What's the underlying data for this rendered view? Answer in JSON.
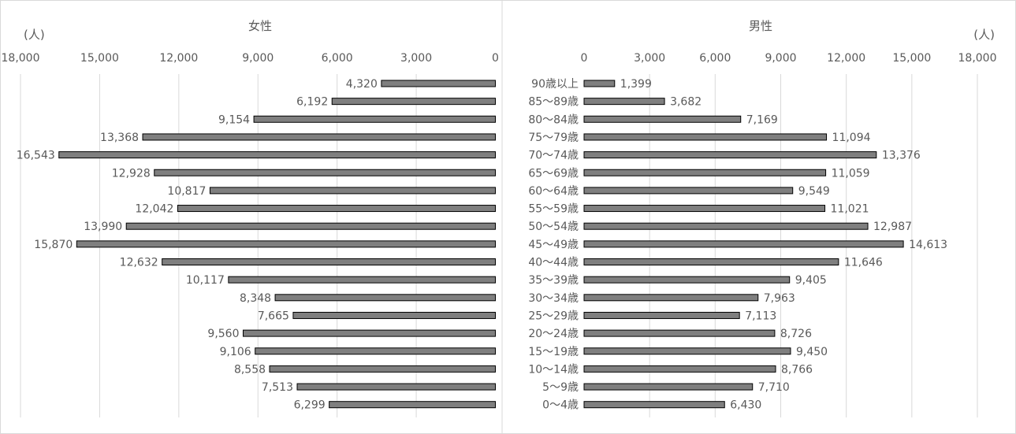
{
  "chart_data": {
    "type": "bar",
    "orientation": "horizontal",
    "subtype": "population-pyramid",
    "unit_label": "(人)",
    "categories": [
      "90歳以上",
      "85～89歳",
      "80～84歳",
      "75～79歳",
      "70～74歳",
      "65～69歳",
      "60～64歳",
      "55～59歳",
      "50～54歳",
      "45～49歳",
      "40～44歳",
      "35～39歳",
      "30～34歳",
      "25～29歳",
      "20～24歳",
      "15～19歳",
      "10～14歳",
      "5～9歳",
      "0～4歳"
    ],
    "series": [
      {
        "name": "女性",
        "side": "left",
        "values": [
          4320,
          6192,
          9154,
          13368,
          16543,
          12928,
          10817,
          12042,
          13990,
          15870,
          12632,
          10117,
          8348,
          7665,
          9560,
          9106,
          8558,
          7513,
          6299
        ],
        "value_labels": [
          "4,320",
          "6,192",
          "9,154",
          "13,368",
          "16,543",
          "12,928",
          "10,817",
          "12,042",
          "13,990",
          "15,870",
          "12,632",
          "10,117",
          "8,348",
          "7,665",
          "9,560",
          "9,106",
          "8,558",
          "7,513",
          "6,299"
        ]
      },
      {
        "name": "男性",
        "side": "right",
        "values": [
          1399,
          3682,
          7169,
          11094,
          13376,
          11059,
          9549,
          11021,
          12987,
          14613,
          11646,
          9405,
          7963,
          7113,
          8726,
          9450,
          8766,
          7710,
          6430
        ],
        "value_labels": [
          "1,399",
          "3,682",
          "7,169",
          "11,094",
          "13,376",
          "11,059",
          "9,549",
          "11,021",
          "12,987",
          "14,613",
          "11,646",
          "9,405",
          "7,963",
          "7,113",
          "8,726",
          "9,450",
          "8,766",
          "7,710",
          "6,430"
        ]
      }
    ],
    "xlim": [
      0,
      18000
    ],
    "ticks": [
      0,
      3000,
      6000,
      9000,
      12000,
      15000,
      18000
    ],
    "tick_labels": [
      "0",
      "3,000",
      "6,000",
      "9,000",
      "12,000",
      "15,000",
      "18,000"
    ],
    "grid": true,
    "bar_color": "#7f7f7f",
    "bar_edge_color": "#000000",
    "grid_color": "#d9d9d9",
    "text_color": "#595959"
  }
}
